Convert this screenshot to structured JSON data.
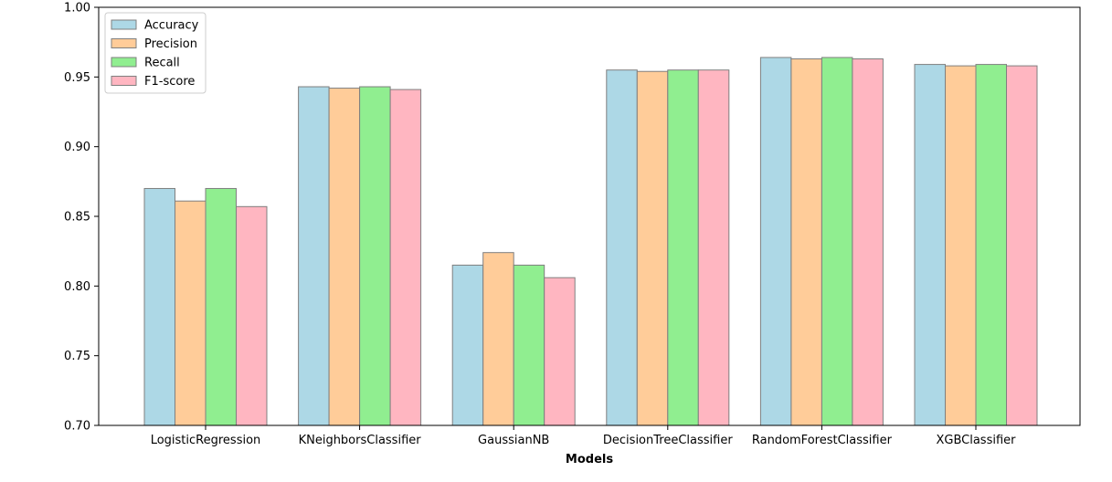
{
  "chart_data": {
    "type": "bar",
    "title": "",
    "xlabel": "Models",
    "ylabel": "",
    "ylim": [
      0.7,
      1.0
    ],
    "yticks": [
      "0.70",
      "0.75",
      "0.80",
      "0.85",
      "0.90",
      "0.95",
      "1.00"
    ],
    "grid": false,
    "legend_position": "top-left",
    "categories": [
      "LogisticRegression",
      "KNeighborsClassifier",
      "GaussianNB",
      "DecisionTreeClassifier",
      "RandomForestClassifier",
      "XGBClassifier"
    ],
    "series": [
      {
        "name": "Accuracy",
        "color": "#add8e6",
        "values": [
          0.87,
          0.943,
          0.815,
          0.955,
          0.964,
          0.959
        ]
      },
      {
        "name": "Precision",
        "color": "#ffcc99",
        "values": [
          0.861,
          0.942,
          0.824,
          0.954,
          0.963,
          0.958
        ]
      },
      {
        "name": "Recall",
        "color": "#90ee90",
        "values": [
          0.87,
          0.943,
          0.815,
          0.955,
          0.964,
          0.959
        ]
      },
      {
        "name": "F1-score",
        "color": "#ffb6c1",
        "values": [
          0.857,
          0.941,
          0.806,
          0.955,
          0.963,
          0.958
        ]
      }
    ],
    "bar_edge_color": "#7f7f7f"
  }
}
